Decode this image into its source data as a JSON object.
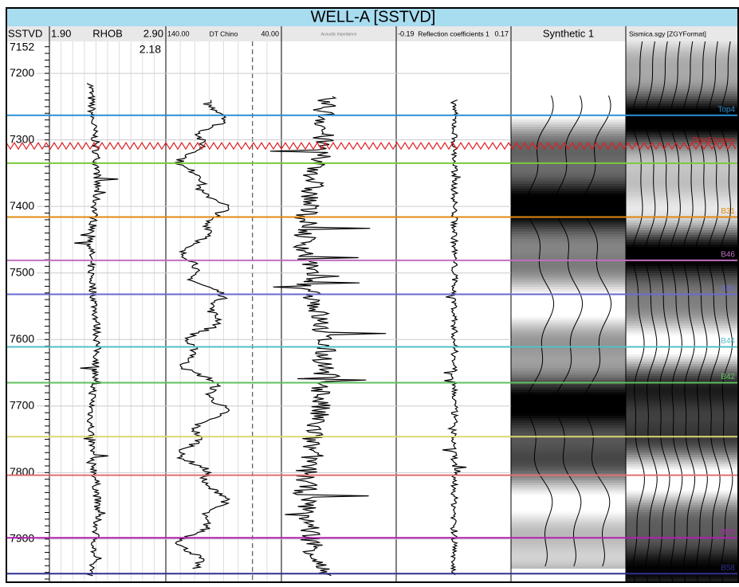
{
  "title": "WELL-A [SSTVD]",
  "depth_track": {
    "name": "SSTVD",
    "ticks": [
      7152,
      7200,
      7300,
      7400,
      7500,
      7600,
      7700,
      7800,
      7900
    ],
    "range": [
      7152,
      7966
    ]
  },
  "tracks": [
    {
      "left": "1.90",
      "name": "RHOB",
      "right": "2.90",
      "readout": "2.18"
    },
    {
      "left": "140.00",
      "name": "DT Chino",
      "right": "40.00"
    },
    {
      "name": "Acoustic impedance"
    },
    {
      "left": "-0.19",
      "name": "Reflection coefficients 1",
      "right": "0.17"
    },
    {
      "name": "Synthetic 1"
    },
    {
      "name": "Sismica.sgy [ZGYFormat]"
    }
  ],
  "horizons": [
    {
      "name": "Top4",
      "color": "#2a8fd6",
      "depth": 7263
    },
    {
      "name": "DiscEoceno",
      "color": "#e02020",
      "depth": 7309,
      "style": "zigzag"
    },
    {
      "color": "#7cc83a",
      "depth": 7335
    },
    {
      "name": "B31",
      "color": "#e08a10",
      "depth": 7416
    },
    {
      "name": "B46",
      "color": "#c070c0",
      "depth": 7481
    },
    {
      "name": "B45",
      "color": "#6a6ad0",
      "depth": 7532
    },
    {
      "name": "B44",
      "color": "#50c0c8",
      "depth": 7611
    },
    {
      "name": "B42",
      "color": "#60c060",
      "depth": 7665
    },
    {
      "color": "#d8d870",
      "depth": 7746
    },
    {
      "color": "#e07070",
      "depth": 7804
    },
    {
      "name": "B54",
      "color": "#b020b0",
      "depth": 7898
    },
    {
      "name": "B58",
      "color": "#303090",
      "depth": 7952
    }
  ]
}
